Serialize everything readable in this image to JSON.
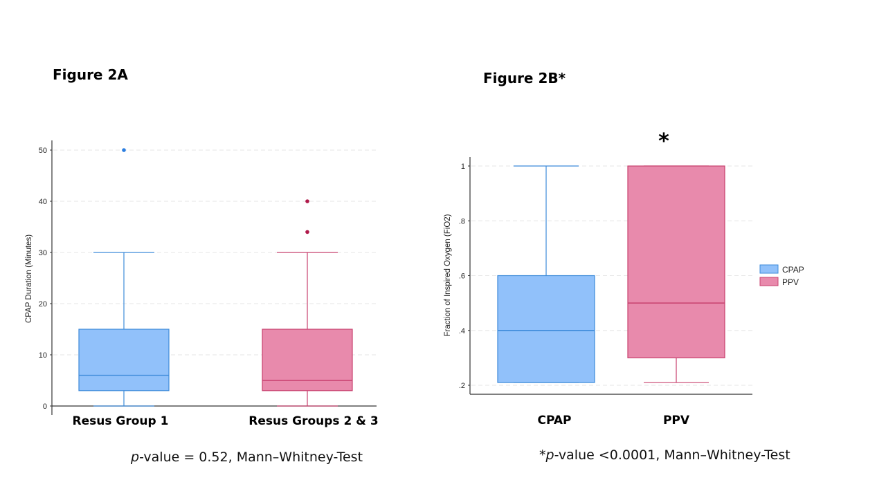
{
  "figure_a": {
    "title": "Figure 2A",
    "caption_italic": "p",
    "caption_rest": "-value = 0.52, Mann–Whitney-Test"
  },
  "figure_b": {
    "title": "Figure 2B*",
    "caption_prefix": "*",
    "caption_italic": "p",
    "caption_rest": "-value <0.0001, Mann–Whitney-Test",
    "significance_marker": "*"
  },
  "colors": {
    "cpap_fill": "#91c1fa",
    "cpap_stroke": "#3c8ad9",
    "ppv_fill": "#e88aac",
    "ppv_stroke": "#c8406e",
    "ppv_outlier": "#b0194a",
    "cpap_outlier": "#2c7ee0"
  },
  "chart_data": [
    {
      "type": "box",
      "ylabel": "CPAP Duration (Minutes)",
      "ylim": [
        0,
        52
      ],
      "yticks": [
        0,
        10,
        20,
        30,
        40,
        50
      ],
      "ytick_labels": [
        "0",
        "10",
        "20",
        "30",
        "40",
        "50"
      ],
      "grid": "horizontal dashed",
      "categories": [
        "Resus Group 1",
        "Resus Groups 2 & 3"
      ],
      "boxes": [
        {
          "category": "Resus Group 1",
          "whisker_low": 0,
          "q1": 3,
          "median": 6,
          "q3": 15,
          "whisker_high": 30,
          "outliers": [
            50
          ],
          "color": "cpap"
        },
        {
          "category": "Resus Groups 2 & 3",
          "whisker_low": 0,
          "q1": 3,
          "median": 5,
          "q3": 15,
          "whisker_high": 30,
          "outliers": [
            34,
            40
          ],
          "color": "ppv"
        }
      ]
    },
    {
      "type": "box",
      "ylabel": "Fraction of Inspired Oxygen (FiO2)",
      "ylim": [
        0.17,
        1.03
      ],
      "yticks": [
        0.2,
        0.4,
        0.6,
        0.8,
        1.0
      ],
      "ytick_labels": [
        ".2",
        ".4",
        ".6",
        ".8",
        "1"
      ],
      "grid": "horizontal dashed",
      "categories": [
        "CPAP",
        "PPV"
      ],
      "legend": {
        "position": "right",
        "entries": [
          {
            "name": "CPAP",
            "color": "cpap"
          },
          {
            "name": "PPV",
            "color": "ppv"
          }
        ]
      },
      "boxes": [
        {
          "category": "CPAP",
          "whisker_low": 0.21,
          "q1": 0.21,
          "median": 0.4,
          "q3": 0.6,
          "whisker_high": 1.0,
          "outliers": [],
          "color": "cpap"
        },
        {
          "category": "PPV",
          "whisker_low": 0.21,
          "q1": 0.3,
          "median": 0.5,
          "q3": 1.0,
          "whisker_high": 1.0,
          "outliers": [],
          "color": "ppv"
        }
      ]
    }
  ]
}
